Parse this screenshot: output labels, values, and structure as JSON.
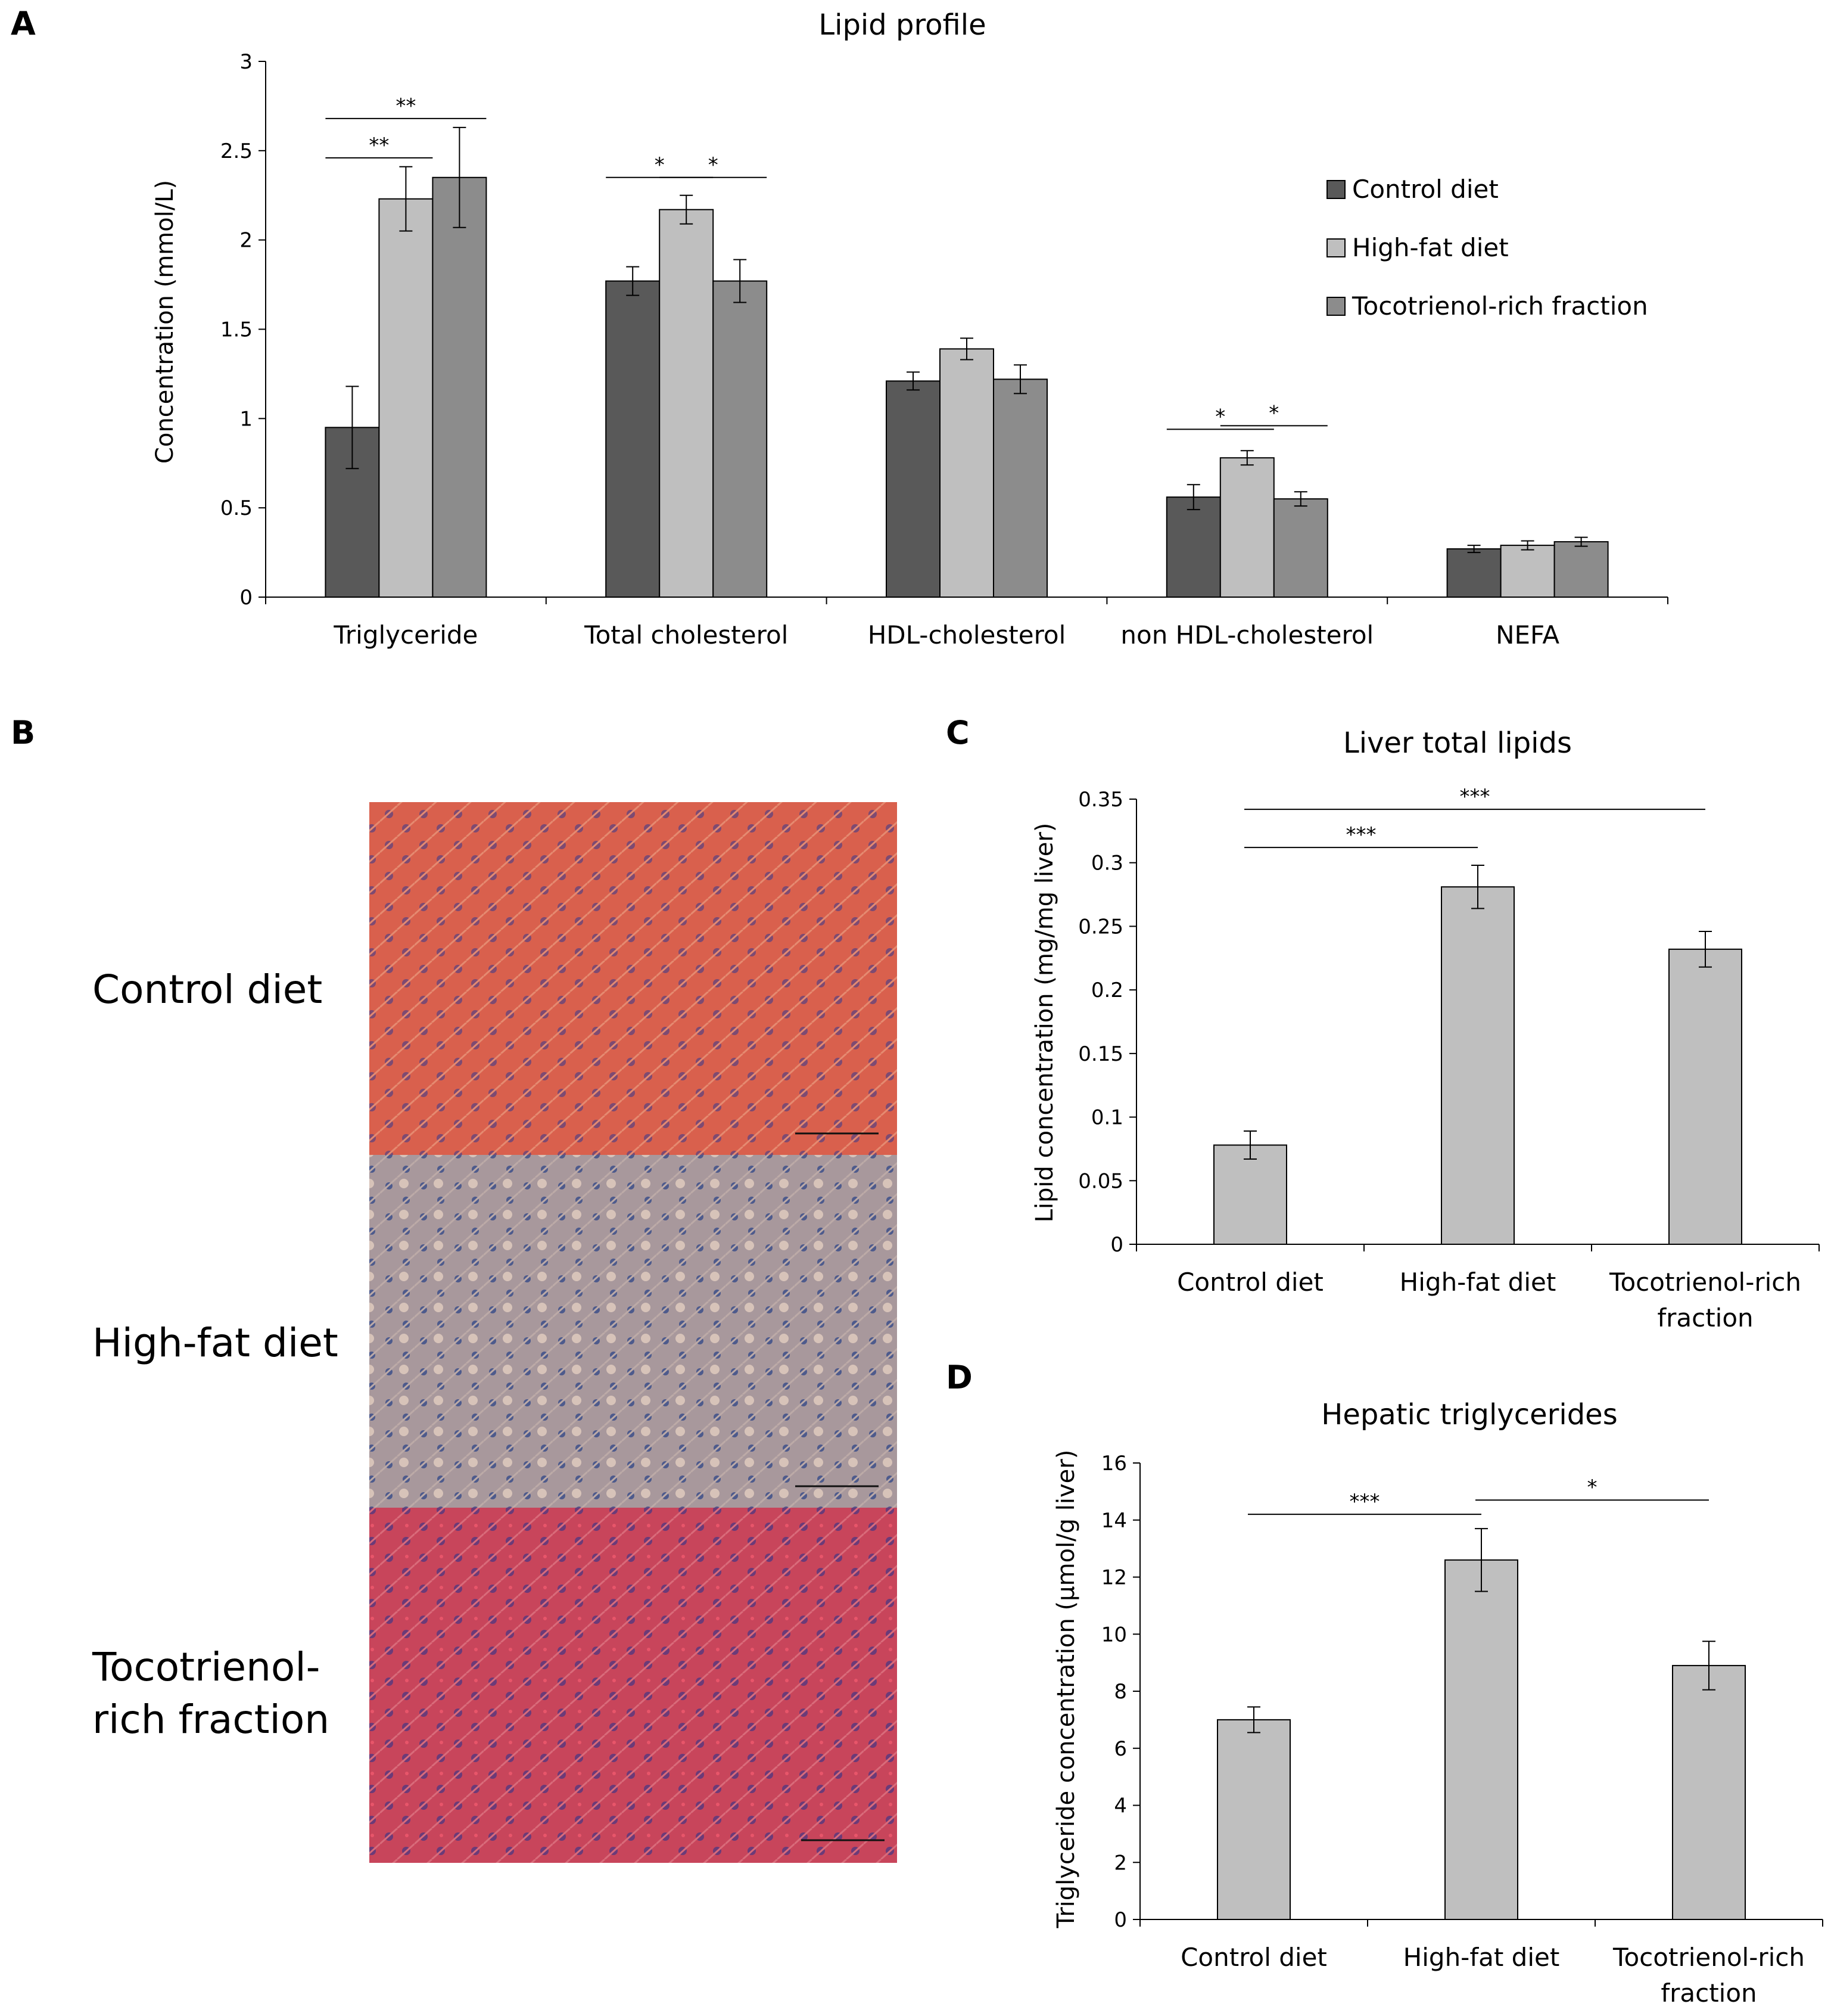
{
  "panels": {
    "A": "A",
    "B": "B",
    "C": "C",
    "D": "D"
  },
  "colors": {
    "control": "#595959",
    "high_fat": "#bfbfbf",
    "trf": "#8c8c8c",
    "bar_single": "#bfbfbf",
    "axis": "#000000"
  },
  "histology": {
    "labels": [
      {
        "line1": "Control diet",
        "line2": ""
      },
      {
        "line1": "High-fat diet",
        "line2": ""
      },
      {
        "line1": "Tocotrienol-",
        "line2": "rich fraction"
      }
    ],
    "fills": [
      "#d9604d",
      "#a8989c",
      "#c8455b"
    ]
  },
  "chart_data": [
    {
      "id": "A",
      "type": "bar",
      "title": "Lipid profile",
      "xlabel": "",
      "ylabel": "Concentration (mmol/L)",
      "ylim": [
        0,
        3
      ],
      "yticks": [
        0,
        0.5,
        1,
        1.5,
        2,
        2.5,
        3
      ],
      "ytick_labels": [
        "0",
        "0.5",
        "1",
        "1.5",
        "2",
        "2.5",
        "3"
      ],
      "categories": [
        "Triglyceride",
        "Total cholesterol",
        "HDL-cholesterol",
        "non HDL-cholesterol",
        "NEFA"
      ],
      "legend_position": "top-right",
      "series": [
        {
          "name": "Control diet",
          "color": "#595959",
          "values": [
            0.95,
            1.77,
            1.21,
            0.56,
            0.27
          ],
          "errors": [
            0.23,
            0.08,
            0.05,
            0.07,
            0.02
          ]
        },
        {
          "name": "High-fat diet",
          "color": "#bfbfbf",
          "values": [
            2.23,
            2.17,
            1.39,
            0.78,
            0.29
          ],
          "errors": [
            0.18,
            0.08,
            0.06,
            0.04,
            0.025
          ]
        },
        {
          "name": "Tocotrienol-rich fraction",
          "color": "#8c8c8c",
          "values": [
            2.35,
            1.77,
            1.22,
            0.55,
            0.31
          ],
          "errors": [
            0.28,
            0.12,
            0.08,
            0.04,
            0.025
          ]
        }
      ],
      "significance": [
        {
          "category": 0,
          "from_series": 0,
          "to_series": 2,
          "y": 2.68,
          "label": "**"
        },
        {
          "category": 0,
          "from_series": 0,
          "to_series": 1,
          "y": 2.46,
          "label": "**"
        },
        {
          "category": 1,
          "from_series": 0,
          "to_series": 1,
          "y": 2.35,
          "label": "*"
        },
        {
          "category": 1,
          "from_series": 1,
          "to_series": 2,
          "y": 2.35,
          "label": "*"
        },
        {
          "category": 3,
          "from_series": 0,
          "to_series": 1,
          "y": 0.94,
          "label": "*"
        },
        {
          "category": 3,
          "from_series": 1,
          "to_series": 2,
          "y": 0.96,
          "label": "*"
        }
      ]
    },
    {
      "id": "C",
      "type": "bar",
      "title": "Liver total lipids",
      "xlabel": "",
      "ylabel": "Lipid concentration (mg/mg liver)",
      "ylim": [
        0,
        0.35
      ],
      "yticks": [
        0,
        0.05,
        0.1,
        0.15,
        0.2,
        0.25,
        0.3,
        0.35
      ],
      "ytick_labels": [
        "0",
        "0.05",
        "0.1",
        "0.15",
        "0.2",
        "0.25",
        "0.3",
        "0.35"
      ],
      "categories": [
        [
          "Control diet"
        ],
        [
          "High-fat diet"
        ],
        [
          "Tocotrienol-rich",
          "fraction"
        ]
      ],
      "values": [
        0.078,
        0.281,
        0.232
      ],
      "errors": [
        0.011,
        0.017,
        0.014
      ],
      "color": "#bfbfbf",
      "significance": [
        {
          "from": 0,
          "to": 1,
          "y": 0.312,
          "label": "***"
        },
        {
          "from": 0,
          "to": 2,
          "y": 0.342,
          "label": "***"
        }
      ]
    },
    {
      "id": "D",
      "type": "bar",
      "title": "Hepatic triglycerides",
      "xlabel": "",
      "ylabel": "Triglyceride concentration (µmol/g liver)",
      "ylim": [
        0,
        16
      ],
      "yticks": [
        0,
        2,
        4,
        6,
        8,
        10,
        12,
        14,
        16
      ],
      "ytick_labels": [
        "0",
        "2",
        "4",
        "6",
        "8",
        "10",
        "12",
        "14",
        "16"
      ],
      "categories": [
        [
          "Control diet"
        ],
        [
          "High-fat diet"
        ],
        [
          "Tocotrienol-rich",
          "fraction"
        ]
      ],
      "values": [
        7.0,
        12.6,
        8.9
      ],
      "errors": [
        0.45,
        1.1,
        0.85
      ],
      "color": "#bfbfbf",
      "significance": [
        {
          "from": 0,
          "to": 1,
          "y": 14.2,
          "label": "***"
        },
        {
          "from": 1,
          "to": 2,
          "y": 14.7,
          "label": "*"
        }
      ]
    }
  ]
}
